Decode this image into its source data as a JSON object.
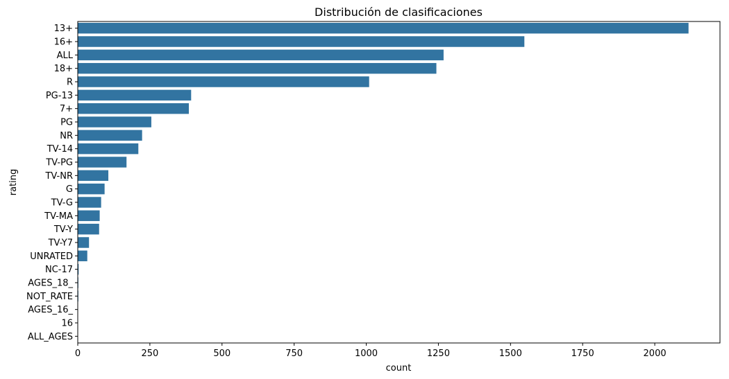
{
  "chart_data": {
    "type": "bar",
    "orientation": "horizontal",
    "title": "Distribución de clasificaciones",
    "xlabel": "count",
    "ylabel": "rating",
    "categories": [
      "13+",
      "16+",
      "ALL",
      "18+",
      "R",
      "PG-13",
      "7+",
      "PG",
      "NR",
      "TV-14",
      "TV-PG",
      "TV-NR",
      "G",
      "TV-G",
      "TV-MA",
      "TV-Y",
      "TV-Y7",
      "UNRATED",
      "NC-17",
      "AGES_18_",
      "NOT_RATE",
      "AGES_16_",
      "16",
      "ALL_AGES"
    ],
    "values": [
      2117,
      1548,
      1268,
      1243,
      1010,
      393,
      385,
      255,
      223,
      210,
      169,
      106,
      93,
      81,
      76,
      74,
      39,
      33,
      3,
      2,
      2,
      1,
      1,
      1
    ],
    "xlim": [
      0,
      2226
    ],
    "xticks": [
      0,
      250,
      500,
      750,
      1000,
      1250,
      1500,
      1750,
      2000
    ],
    "grid": false,
    "legend": "none",
    "bar_color": "#3274a1"
  }
}
